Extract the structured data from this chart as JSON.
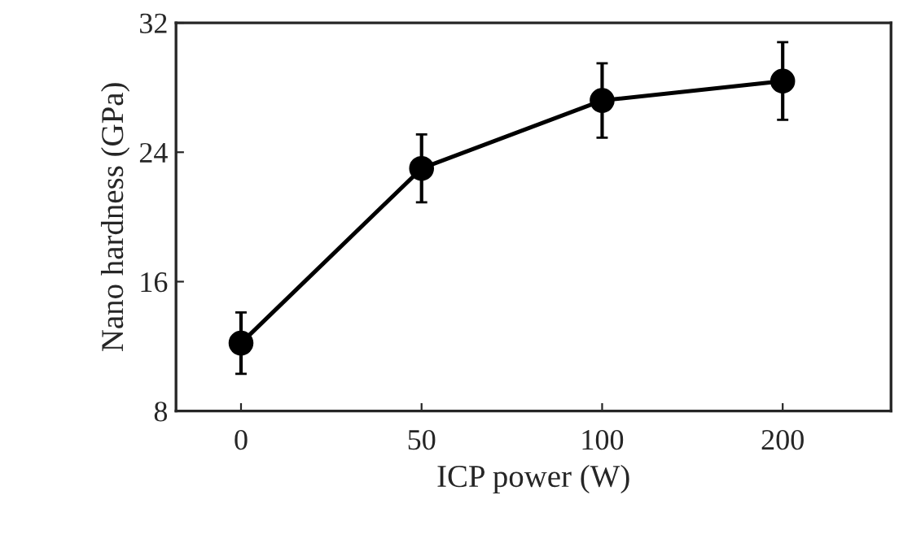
{
  "chart_data": {
    "type": "line",
    "xlabel": "ICP power (W)",
    "ylabel": "Nano hardness (GPa)",
    "categories": [
      "0",
      "50",
      "100",
      "200"
    ],
    "series": [
      {
        "color": "#000000",
        "values": [
          12.2,
          23.0,
          27.2,
          28.4
        ],
        "errors": [
          1.9,
          2.1,
          2.3,
          2.4
        ]
      }
    ],
    "ylim": [
      8,
      32
    ],
    "yticks": [
      8,
      16,
      24,
      32
    ],
    "grid": false,
    "legend": false,
    "marker": "circle",
    "line_style": "solid"
  }
}
